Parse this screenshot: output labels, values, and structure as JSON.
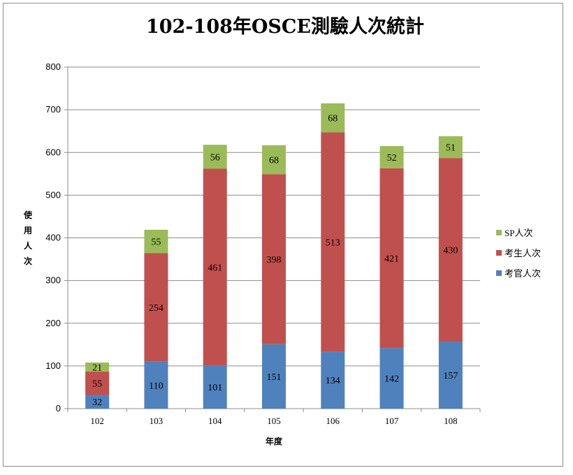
{
  "chart_data": {
    "type": "bar",
    "stacked": true,
    "title": "102-108年OSCE測驗人次統計",
    "xlabel": "年度",
    "ylabel": "使用人次",
    "categories": [
      "102",
      "103",
      "104",
      "105",
      "106",
      "107",
      "108"
    ],
    "ylim": [
      0,
      800
    ],
    "yticks": [
      0,
      100,
      200,
      300,
      400,
      500,
      600,
      700,
      800
    ],
    "grid": true,
    "legend_position": "right",
    "series": [
      {
        "name": "考官人次",
        "color": "#4f81bd",
        "values": [
          32,
          110,
          101,
          151,
          134,
          142,
          157
        ]
      },
      {
        "name": "考生人次",
        "color": "#c0504d",
        "values": [
          55,
          254,
          461,
          398,
          513,
          421,
          430
        ]
      },
      {
        "name": "SP人次",
        "color": "#9bbb59",
        "values": [
          21,
          55,
          56,
          68,
          68,
          52,
          51
        ]
      }
    ]
  }
}
